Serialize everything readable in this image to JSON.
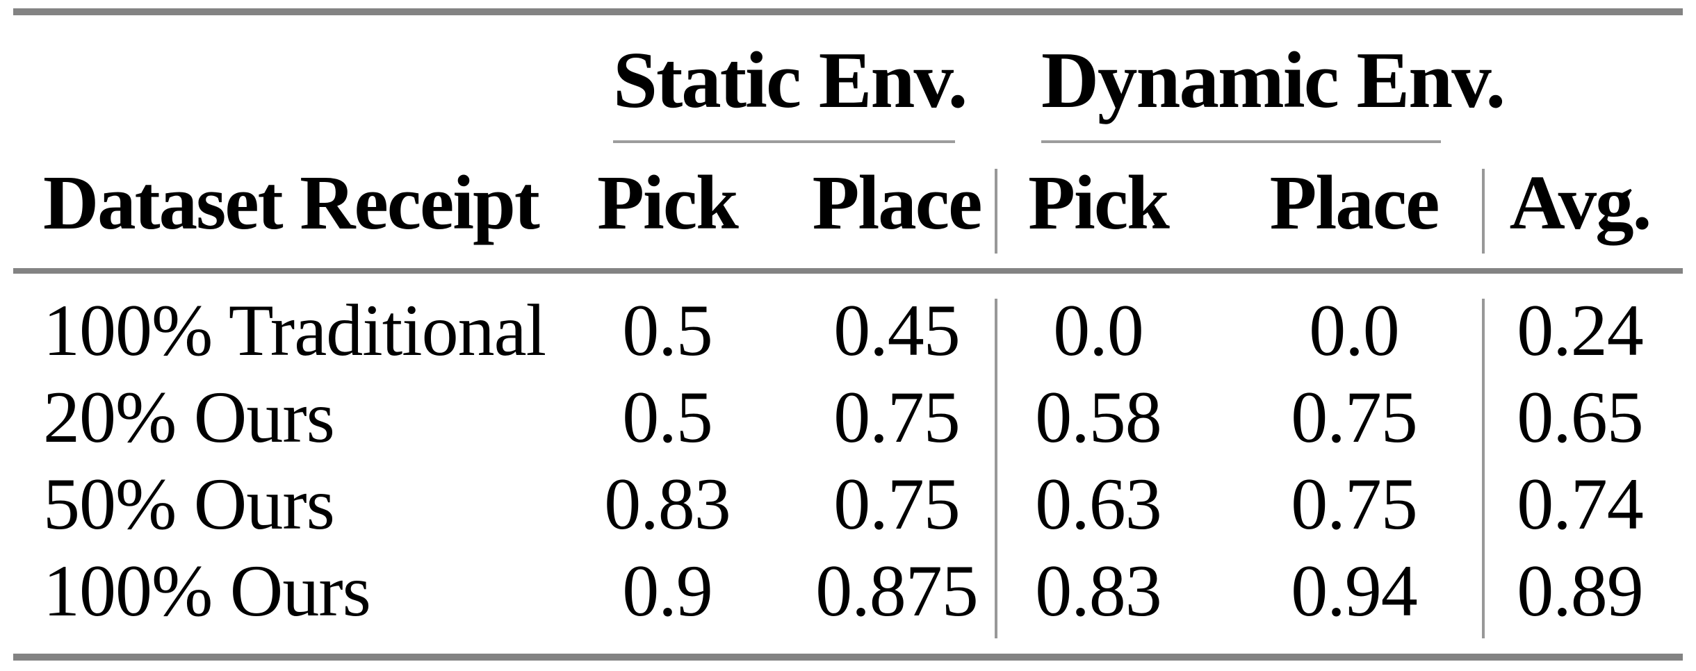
{
  "table": {
    "group_headers": [
      {
        "label": "Static Env."
      },
      {
        "label": "Dynamic Env."
      }
    ],
    "column_headers": {
      "dataset": "Dataset Receipt",
      "static_pick": "Pick",
      "static_place": "Place",
      "dynamic_pick": "Pick",
      "dynamic_place": "Place",
      "avg": "Avg."
    },
    "rows": [
      {
        "label": "100% Traditional",
        "static_pick": "0.5",
        "static_place": "0.45",
        "dynamic_pick": "0.0",
        "dynamic_place": "0.0",
        "avg": "0.24"
      },
      {
        "label": "20% Ours",
        "static_pick": "0.5",
        "static_place": "0.75",
        "dynamic_pick": "0.58",
        "dynamic_place": "0.75",
        "avg": "0.65"
      },
      {
        "label": "50% Ours",
        "static_pick": "0.83",
        "static_place": "0.75",
        "dynamic_pick": "0.63",
        "dynamic_place": "0.75",
        "avg": "0.74"
      },
      {
        "label": "100% Ours",
        "static_pick": "0.9",
        "static_place": "0.875",
        "dynamic_pick": "0.83",
        "dynamic_place": "0.94",
        "avg": "0.89"
      }
    ],
    "colors": {
      "background": "#ffffff",
      "text": "#000000",
      "rule_thick": "#838383",
      "rule_thin": "#9c9c9c"
    }
  }
}
